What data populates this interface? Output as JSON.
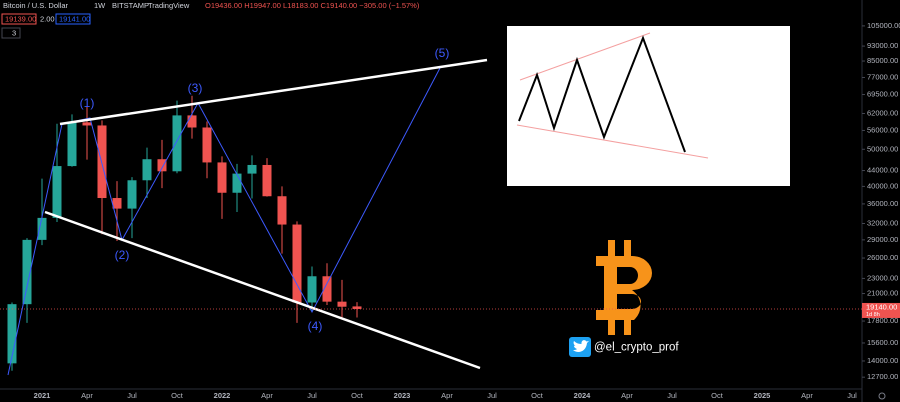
{
  "header": {
    "symbol": "Bitcoin / U.S. Dollar",
    "interval": "1W",
    "exchange": "BITSTAMP",
    "source": "TradingView",
    "ohlc": "O19436.00 H19947.00 L18183.00 C19140.00 −305.00 (−1.57%)",
    "bid": "19139.00",
    "spread": "2.00",
    "ask": "19141.00",
    "indicators": "3"
  },
  "overlay": {
    "handle": "@el_crypto_prof"
  },
  "chart_data": {
    "type": "candlestick",
    "categories": [
      null,
      null,
      "2021",
      null,
      null,
      "Apr",
      null,
      null,
      "Jul",
      null,
      null,
      "Oct",
      null,
      null,
      "2022",
      null,
      null,
      "Apr",
      null,
      null,
      "Jul",
      null,
      null,
      "Oct",
      null,
      null,
      "2023",
      null,
      null,
      "Apr",
      null,
      null,
      "Jul",
      null,
      null,
      "Oct",
      null,
      null,
      "2024",
      null,
      null,
      "Apr",
      null,
      null,
      "Jul",
      null,
      null,
      "Oct",
      null,
      null,
      "2025",
      null,
      null,
      "Apr",
      null,
      null,
      "Jul"
    ],
    "open": [
      13800,
      19700,
      29000,
      33100,
      45200,
      58800,
      57700,
      37300,
      35000,
      41500,
      47100,
      43800,
      61300,
      57000,
      46200,
      38500,
      43200,
      45500,
      37700,
      31800,
      19900,
      23300,
      20000,
      19436,
      null,
      null,
      null,
      null,
      null,
      null,
      null,
      null,
      null,
      null,
      null,
      null,
      null,
      null,
      null,
      null,
      null,
      null,
      null,
      null,
      null,
      null,
      null,
      null,
      null,
      null,
      null,
      null,
      null,
      null,
      null,
      null,
      null
    ],
    "high": [
      19900,
      29300,
      41900,
      58300,
      61700,
      64800,
      59500,
      41300,
      42300,
      50500,
      52900,
      67000,
      69000,
      59100,
      47900,
      45800,
      48200,
      47400,
      40000,
      32400,
      24700,
      25200,
      22800,
      19947,
      null,
      null,
      null,
      null,
      null,
      null,
      null,
      null,
      null,
      null,
      null,
      null,
      null,
      null,
      null,
      null,
      null,
      null,
      null,
      null,
      null,
      null,
      null,
      null,
      null,
      null,
      null,
      null,
      null,
      null,
      null,
      null,
      null
    ],
    "low": [
      13200,
      17600,
      28100,
      32300,
      45000,
      47000,
      30000,
      28800,
      29300,
      37300,
      39600,
      43300,
      53300,
      42000,
      32900,
      34300,
      37200,
      37600,
      26700,
      17600,
      18800,
      19600,
      18200,
      18183,
      null,
      null,
      null,
      null,
      null,
      null,
      null,
      null,
      null,
      null,
      null,
      null,
      null,
      null,
      null,
      null,
      null,
      null,
      null,
      null,
      null,
      null,
      null,
      null,
      null,
      null,
      null,
      null,
      null,
      null,
      null,
      null,
      null
    ],
    "close": [
      19700,
      29000,
      33100,
      45200,
      58800,
      57700,
      37300,
      35000,
      41500,
      47100,
      43800,
      61300,
      57000,
      46200,
      38500,
      43200,
      45500,
      37700,
      31800,
      19900,
      23300,
      20000,
      19400,
      19140,
      null,
      null,
      null,
      null,
      null,
      null,
      null,
      null,
      null,
      null,
      null,
      null,
      null,
      null,
      null,
      null,
      null,
      null,
      null,
      null,
      null,
      null,
      null,
      null,
      null,
      null,
      null,
      null,
      null,
      null,
      null,
      null,
      null
    ],
    "up_color": "#26a69a",
    "down_color": "#ef5350",
    "log_scale": true,
    "ylim": [
      11900,
      122700
    ],
    "yticks": [
      {
        "value": 12700,
        "label": "12700.00"
      },
      {
        "value": 14000,
        "label": "14000.00"
      },
      {
        "value": 15600,
        "label": "15600.00"
      },
      {
        "value": 17800,
        "label": "17800.00"
      },
      {
        "value": 21000,
        "label": "21000.00"
      },
      {
        "value": 23000,
        "label": "23000.00"
      },
      {
        "value": 26000,
        "label": "26000.00"
      },
      {
        "value": 29000,
        "label": "29000.00"
      },
      {
        "value": 32000,
        "label": "32000.00"
      },
      {
        "value": 36000,
        "label": "36000.00"
      },
      {
        "value": 40000,
        "label": "40000.00"
      },
      {
        "value": 44000,
        "label": "44000.00"
      },
      {
        "value": 50000,
        "label": "50000.00"
      },
      {
        "value": 56000,
        "label": "56000.00"
      },
      {
        "value": 62000,
        "label": "62000.00"
      },
      {
        "value": 69500,
        "label": "69500.00"
      },
      {
        "value": 77000,
        "label": "77000.00"
      },
      {
        "value": 85000,
        "label": "85000.00"
      },
      {
        "value": 93000,
        "label": "93000.00"
      },
      {
        "value": 105000,
        "label": "105000.00"
      }
    ],
    "last_price": {
      "value": 19140,
      "label": "19140.00"
    },
    "countdown": "1d 8h",
    "annotations": [
      "(1)",
      "(2)",
      "(3)",
      "(4)",
      "(5)"
    ]
  }
}
